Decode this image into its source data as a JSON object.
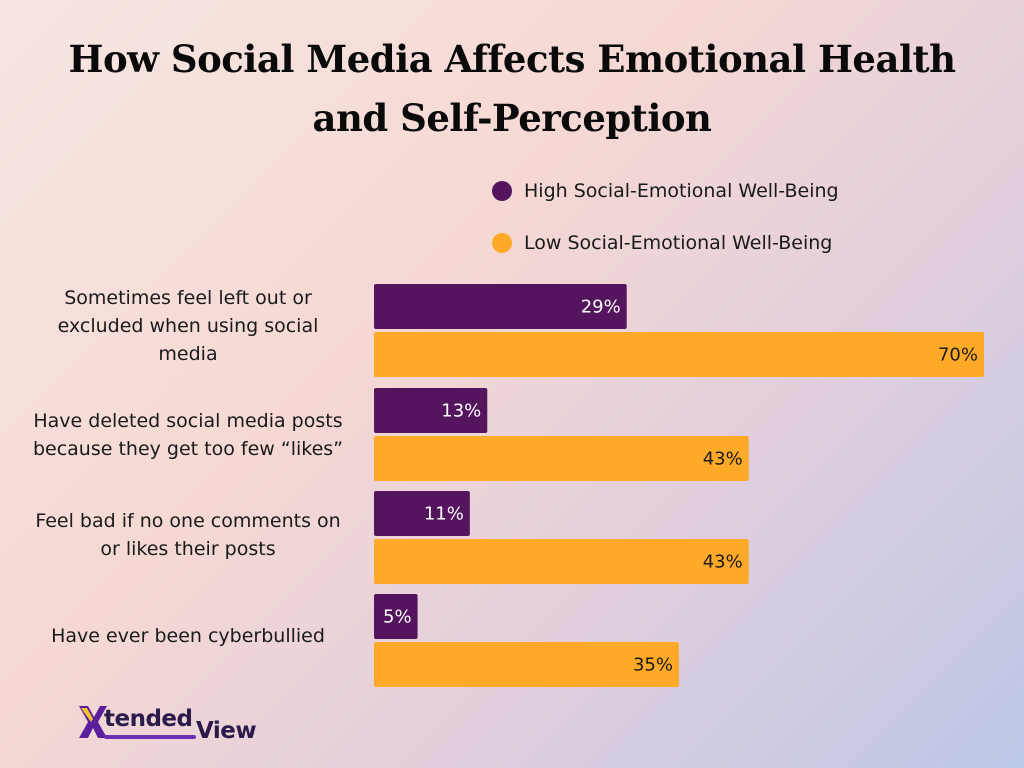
{
  "chart_data": {
    "type": "bar",
    "orientation": "horizontal",
    "title": "How Social Media Affects Emotional Health and Self-Perception",
    "title_lines": [
      "How Social Media Affects Emotional Health",
      "and Self-Perception"
    ],
    "categories": [
      "Sometimes feel left out or excluded when using social media",
      "Have deleted social media posts because they get too few “likes”",
      "Feel bad if no one comments on or likes their posts",
      "Have ever been cyberbullied"
    ],
    "category_lines": [
      [
        "Sometimes feel left out or",
        "excluded when using social",
        "media"
      ],
      [
        "Have deleted social media posts",
        "because they get too few “likes”"
      ],
      [
        "Feel bad if no one comments on",
        "or likes their posts"
      ],
      [
        "Have ever been cyberbullied"
      ]
    ],
    "series": [
      {
        "name": "High Social-Emotional Well-Being",
        "color": "#54145e",
        "values": [
          29,
          13,
          11,
          5
        ],
        "labels": [
          "29%",
          "13%",
          "11%",
          "5%"
        ]
      },
      {
        "name": "Low Social-Emotional Well-Being",
        "color": "#ffa929",
        "values": [
          70,
          43,
          43,
          35
        ],
        "labels": [
          "70%",
          "43%",
          "43%",
          "35%"
        ]
      }
    ],
    "unit": "%",
    "xlim": [
      0,
      70
    ],
    "legend_position": "top-right",
    "grid": false
  },
  "branding": {
    "logo_mark": "X",
    "logo_text_1": "tended",
    "logo_text_2": "View"
  }
}
